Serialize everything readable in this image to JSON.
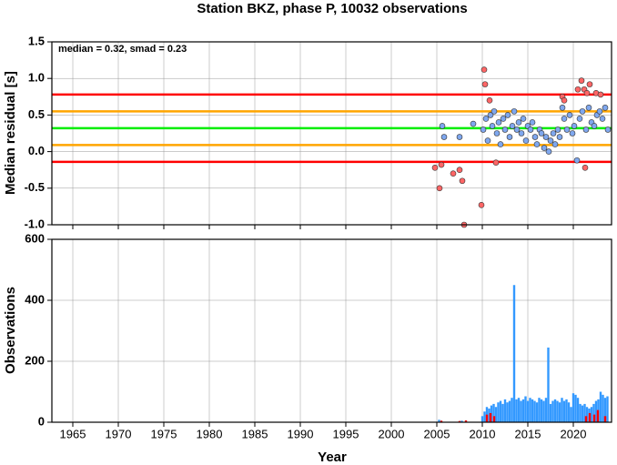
{
  "chart_data": [
    {
      "type": "scatter",
      "title": "Station BKZ, phase P, 10032 observations",
      "y_label": "Median residual [s]",
      "annotation": "median = 0.32, smad = 0.23",
      "xlim": [
        1962.7,
        2024.2
      ],
      "xticks": [
        1965,
        1970,
        1975,
        1980,
        1985,
        1990,
        1995,
        2000,
        2005,
        2010,
        2015,
        2020
      ],
      "ylim": [
        -1,
        1.5
      ],
      "yticks": [
        {
          "value": -1,
          "label": "-1.0"
        },
        -0.5,
        {
          "value": 0,
          "label": "0.0"
        },
        0.5,
        {
          "value": 1,
          "label": "1.0"
        },
        1.5
      ],
      "grid": true,
      "reference_lines": [
        {
          "value": 0.78,
          "color": "#ff0000"
        },
        {
          "value": 0.55,
          "color": "#ffa500"
        },
        {
          "value": 0.32,
          "color": "#00ee00"
        },
        {
          "value": 0.09,
          "color": "#ffa500"
        },
        {
          "value": -0.14,
          "color": "#ff0000"
        }
      ],
      "series": [
        {
          "color": "#ff6666",
          "x": [
            2004.8,
            2005.3,
            2005.5,
            2006.8,
            2007.5,
            2007.8,
            2008.0,
            2009.9,
            2010.2,
            2010.3,
            2010.8,
            2011.5,
            2018.8,
            2019.0,
            2020.5,
            2020.9,
            2021.2,
            2021.3,
            2021.5,
            2021.8,
            2022.5,
            2023.0
          ],
          "y": [
            -0.22,
            -0.5,
            -0.18,
            -0.3,
            -0.25,
            -0.4,
            -1.0,
            -0.73,
            1.12,
            0.92,
            0.7,
            -0.15,
            0.75,
            0.7,
            0.85,
            0.97,
            0.85,
            -0.22,
            0.8,
            0.92,
            0.8,
            0.78
          ]
        },
        {
          "color": "#7fa7ee",
          "x": [
            2005.6,
            2005.8,
            2007.5,
            2009.0,
            2010.1,
            2010.4,
            2010.6,
            2010.9,
            2011.1,
            2011.3,
            2011.6,
            2011.8,
            2012.0,
            2012.3,
            2012.5,
            2012.8,
            2013.0,
            2013.3,
            2013.5,
            2013.8,
            2014.0,
            2014.3,
            2014.5,
            2014.8,
            2015.0,
            2015.3,
            2015.5,
            2015.8,
            2016.0,
            2016.3,
            2016.5,
            2016.8,
            2017.0,
            2017.3,
            2017.5,
            2017.8,
            2018.0,
            2018.3,
            2018.5,
            2018.8,
            2019.0,
            2019.3,
            2019.6,
            2019.9,
            2020.1,
            2020.4,
            2020.7,
            2021.0,
            2021.4,
            2021.7,
            2022.0,
            2022.3,
            2022.6,
            2022.9,
            2023.2,
            2023.5,
            2023.8
          ],
          "y": [
            0.35,
            0.2,
            0.2,
            0.38,
            0.3,
            0.45,
            0.15,
            0.5,
            0.35,
            0.55,
            0.25,
            0.4,
            0.1,
            0.45,
            0.3,
            0.5,
            0.2,
            0.35,
            0.55,
            0.3,
            0.4,
            0.25,
            0.45,
            0.15,
            0.35,
            0.3,
            0.4,
            0.2,
            0.1,
            0.3,
            0.25,
            0.05,
            0.2,
            0.0,
            0.15,
            0.25,
            0.1,
            0.3,
            0.2,
            0.6,
            0.45,
            0.3,
            0.5,
            0.25,
            0.35,
            -0.12,
            0.45,
            0.55,
            0.3,
            0.6,
            0.4,
            0.35,
            0.5,
            0.55,
            0.45,
            0.6,
            0.3
          ]
        }
      ]
    },
    {
      "type": "bar",
      "y_label": "Observations",
      "x_label": "Year",
      "xlim": [
        1962.7,
        2024.2
      ],
      "xticks": [
        1965,
        1970,
        1975,
        1980,
        1985,
        1990,
        1995,
        2000,
        2005,
        2010,
        2015,
        2020
      ],
      "ylim": [
        0,
        600
      ],
      "yticks": [
        0,
        200,
        400,
        600
      ],
      "grid": true,
      "series": [
        {
          "color": "#3399ff",
          "x": [
            2005.25,
            2007.75,
            2010.0,
            2010.25,
            2010.5,
            2010.75,
            2011.0,
            2011.25,
            2011.5,
            2011.75,
            2012.0,
            2012.25,
            2012.5,
            2012.75,
            2013.0,
            2013.25,
            2013.5,
            2013.75,
            2014.0,
            2014.25,
            2014.5,
            2014.75,
            2015.0,
            2015.25,
            2015.5,
            2015.75,
            2016.0,
            2016.25,
            2016.5,
            2016.75,
            2017.0,
            2017.25,
            2017.5,
            2017.75,
            2018.0,
            2018.25,
            2018.5,
            2018.75,
            2019.0,
            2019.25,
            2019.5,
            2019.75,
            2020.0,
            2020.25,
            2020.5,
            2020.75,
            2021.0,
            2021.25,
            2021.5,
            2021.75,
            2022.0,
            2022.25,
            2022.5,
            2022.75,
            2023.0,
            2023.25,
            2023.5,
            2023.75
          ],
          "values": [
            8,
            5,
            20,
            35,
            50,
            45,
            55,
            60,
            50,
            65,
            70,
            60,
            75,
            65,
            70,
            80,
            450,
            75,
            80,
            70,
            75,
            85,
            70,
            80,
            75,
            70,
            65,
            80,
            75,
            70,
            80,
            245,
            60,
            70,
            75,
            70,
            65,
            80,
            70,
            75,
            65,
            50,
            95,
            90,
            80,
            60,
            55,
            60,
            50,
            45,
            50,
            60,
            70,
            75,
            100,
            90,
            80,
            85
          ]
        },
        {
          "color": "#ff0000",
          "x": [
            2005.5,
            2007.5,
            2008.2,
            2010.5,
            2010.9,
            2011.3,
            2021.4,
            2021.8,
            2022.3,
            2022.7,
            2023.5
          ],
          "values": [
            5,
            4,
            6,
            25,
            30,
            20,
            20,
            30,
            25,
            40,
            20
          ]
        }
      ]
    }
  ]
}
